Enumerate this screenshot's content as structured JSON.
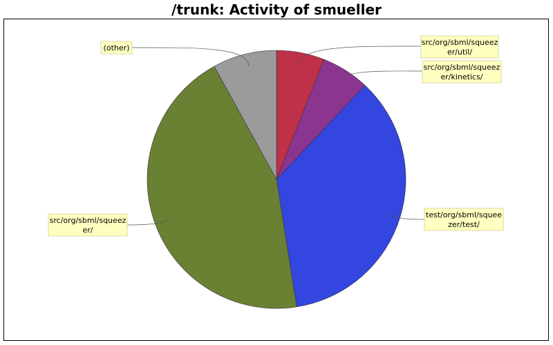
{
  "chart_data": {
    "type": "pie",
    "title": "/trunk: Activity of smueller",
    "slices": [
      {
        "label": "src/org/sbml/squeezer/util/",
        "value": 6.0,
        "color": "#bf3049"
      },
      {
        "label": "src/org/sbml/squeezer/kinetics/",
        "value": 6.0,
        "color": "#8b3591"
      },
      {
        "label": "test/org/sbml/squeezer/test/",
        "value": 35.5,
        "color": "#3346e0"
      },
      {
        "label": "src/org/sbml/squeezer/",
        "value": 44.5,
        "color": "#6a8134"
      },
      {
        "label": "(other)",
        "value": 8.0,
        "color": "#9b9b9b"
      }
    ],
    "start_angle_deg": 0,
    "direction": "clockwise",
    "legend": "none"
  }
}
